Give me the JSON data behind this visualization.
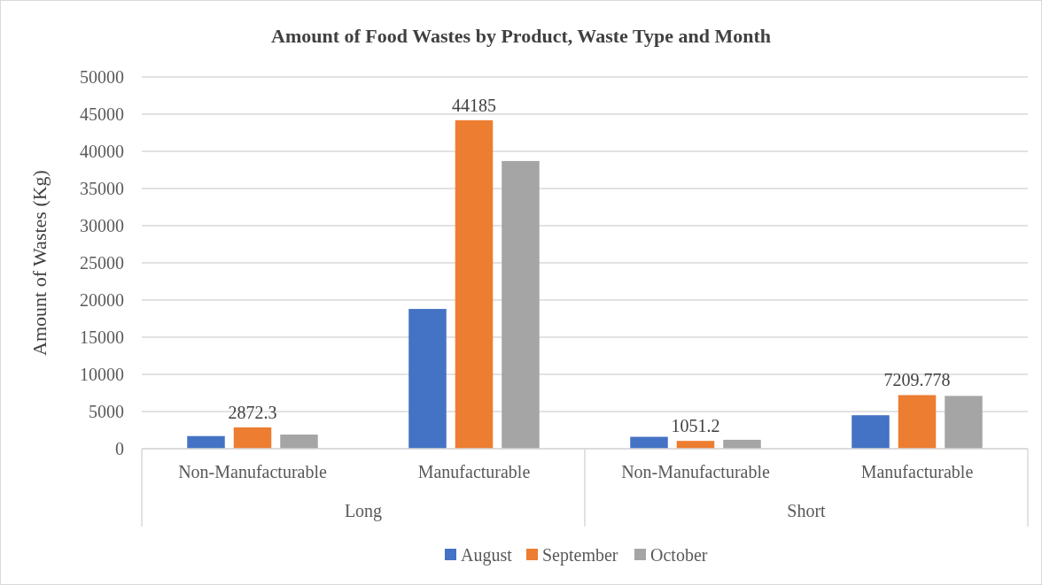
{
  "chart_data": {
    "type": "bar",
    "title": "Amount of Food Wastes by Product, Waste Type and Month",
    "ylabel": "Amount of Wastes (Kg)",
    "categories": [
      "Non-Manufacturable",
      "Manufacturable",
      "Non-Manufacturable",
      "Manufacturable"
    ],
    "annotations": [
      "Long",
      "Short"
    ],
    "series": [
      {
        "name": "August",
        "color": "#4472c4",
        "values": [
          1700,
          18800,
          1600,
          4500
        ]
      },
      {
        "name": "September",
        "color": "#ed7d31",
        "values": [
          2872.3,
          44185,
          1051.2,
          7209.778
        ],
        "value_labels": [
          "2872.3",
          "44185",
          "1051.2",
          "7209.778"
        ]
      },
      {
        "name": "October",
        "color": "#a5a5a5",
        "values": [
          1900,
          38700,
          1200,
          7100
        ]
      }
    ],
    "ylim": [
      0,
      50000
    ],
    "yticks": [
      0,
      5000,
      10000,
      15000,
      20000,
      25000,
      30000,
      35000,
      40000,
      45000,
      50000
    ],
    "grid": "y",
    "legend": "bottom"
  }
}
